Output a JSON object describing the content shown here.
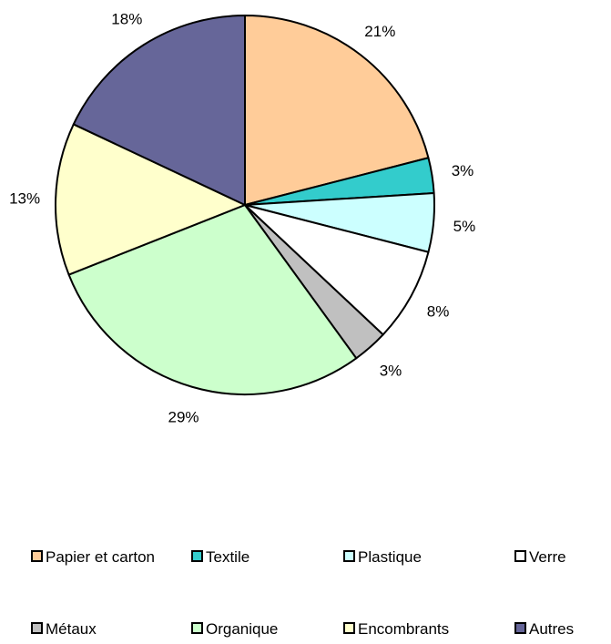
{
  "chart_data": {
    "type": "pie",
    "title": "",
    "start_angle_deg": 0,
    "direction": "clockwise",
    "legend_position": "bottom",
    "label_format": "percent",
    "slices": [
      {
        "name": "Papier et carton",
        "value": 21,
        "label": "21%",
        "color": "#FFCC99"
      },
      {
        "name": "Textile",
        "value": 3,
        "label": "3%",
        "color": "#33CCCC"
      },
      {
        "name": "Plastique",
        "value": 5,
        "label": "5%",
        "color": "#CCFFFF"
      },
      {
        "name": "Verre",
        "value": 8,
        "label": "8%",
        "color": "#FFFFFF"
      },
      {
        "name": "Métaux",
        "value": 3,
        "label": "3%",
        "color": "#C0C0C0"
      },
      {
        "name": "Organique",
        "value": 29,
        "label": "29%",
        "color": "#CCFFCC"
      },
      {
        "name": "Encombrants",
        "value": 13,
        "label": "13%",
        "color": "#FFFFCC"
      },
      {
        "name": "Autres",
        "value": 18,
        "label": "18%",
        "color": "#666699"
      }
    ]
  }
}
